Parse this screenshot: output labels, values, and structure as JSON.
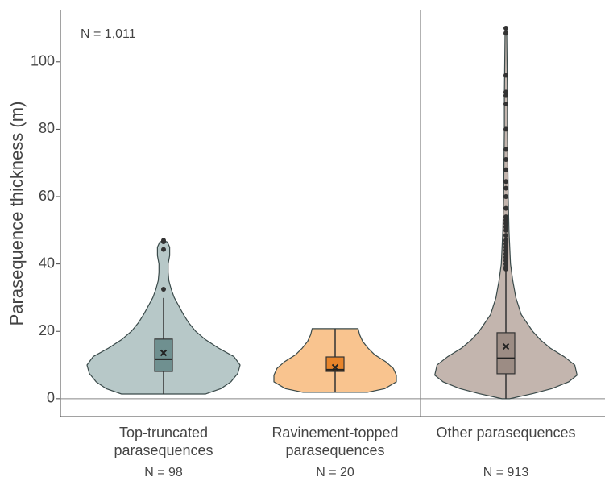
{
  "chart_data": {
    "type": "violin",
    "y_label": "Parasequence thickness (m)",
    "annotation": "N = 1,011",
    "categories": [
      "Top-truncated parasequences",
      "Ravinement-topped parasequences",
      "Other parasequences"
    ],
    "n_labels": [
      "N = 98",
      "N = 20",
      "N = 913"
    ],
    "ylim": [
      -5.3,
      115.5
    ],
    "yticks": [
      0,
      20,
      40,
      60,
      80,
      100
    ],
    "groups": [
      {
        "fill": "#b7c8c8",
        "box_color": "#6f9090",
        "whisker_low": 1.4,
        "q1": 8.1,
        "median": 11.7,
        "q3": 17.7,
        "whisker_high": 29.9,
        "mean": 13.6,
        "outliers": [
          32.5,
          44.3,
          46.6,
          47
        ],
        "violin": {
          "y": [
            1.4,
            3,
            5,
            7.5,
            10,
            12.5,
            15,
            17.5,
            20,
            22.5,
            25,
            27.5,
            30,
            32.5,
            35,
            37.5,
            40,
            42.5,
            45,
            46.5,
            47
          ],
          "width": [
            0.55,
            0.75,
            0.88,
            0.97,
            1.0,
            0.92,
            0.72,
            0.55,
            0.42,
            0.33,
            0.26,
            0.2,
            0.14,
            0.1,
            0.07,
            0.06,
            0.06,
            0.08,
            0.08,
            0.05,
            0.0
          ]
        }
      },
      {
        "fill": "#f9c48f",
        "box_color": "#e8842a",
        "whisker_low": 1.9,
        "q1": 8.1,
        "median": 8.6,
        "q3": 12.4,
        "whisker_high": 20.8,
        "mean": 9.3,
        "outliers": [],
        "violin": {
          "y": [
            1.9,
            3,
            5,
            7,
            9,
            11,
            13,
            15,
            17,
            19,
            20.8
          ],
          "width": [
            0.42,
            0.65,
            0.8,
            0.8,
            0.76,
            0.66,
            0.52,
            0.43,
            0.36,
            0.32,
            0.3
          ]
        }
      },
      {
        "fill": "#c3b5ae",
        "box_color": "#9c8c84",
        "whisker_low": 0,
        "q1": 7.4,
        "median": 12.0,
        "q3": 19.6,
        "whisker_high": 38,
        "mean": 15.5,
        "outliers": [
          38.5,
          39,
          40,
          41,
          42,
          43,
          44,
          45,
          46,
          47,
          48.5,
          50,
          51,
          52,
          53,
          54,
          56.5,
          60,
          62.5,
          64.5,
          68,
          71,
          74,
          80,
          87.5,
          90,
          91,
          96,
          108.5,
          110
        ],
        "violin": {
          "y": [
            0,
            1.5,
            3,
            5,
            7,
            10,
            12.5,
            15,
            17.5,
            20,
            25,
            30,
            35,
            40,
            50,
            60,
            70,
            80,
            90,
            100,
            110
          ],
          "width": [
            0.05,
            0.35,
            0.6,
            0.82,
            0.93,
            0.9,
            0.76,
            0.58,
            0.45,
            0.35,
            0.2,
            0.13,
            0.09,
            0.06,
            0.04,
            0.03,
            0.025,
            0.02,
            0.02,
            0.015,
            0.01
          ]
        }
      }
    ]
  }
}
